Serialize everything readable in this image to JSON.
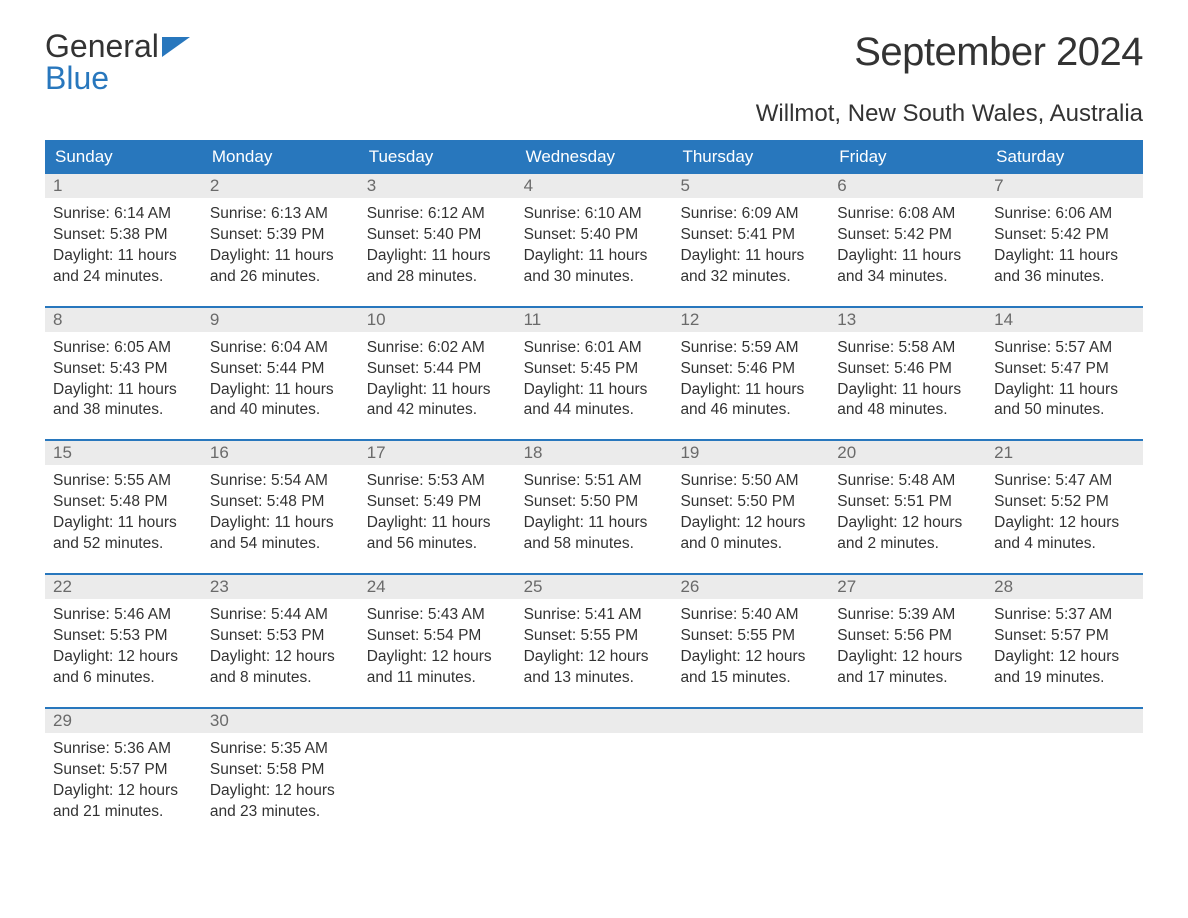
{
  "logo": {
    "text1": "General",
    "text2": "Blue",
    "flag_color": "#2877bd"
  },
  "title": "September 2024",
  "subtitle": "Willmot, New South Wales, Australia",
  "colors": {
    "header_bg": "#2877bd",
    "header_text": "#ffffff",
    "daynum_bg": "#ebebeb",
    "daynum_text": "#6a6a6a",
    "body_text": "#333333",
    "week_border": "#2877bd"
  },
  "day_headers": [
    "Sunday",
    "Monday",
    "Tuesday",
    "Wednesday",
    "Thursday",
    "Friday",
    "Saturday"
  ],
  "weeks": [
    [
      {
        "n": "1",
        "sunrise": "6:14 AM",
        "sunset": "5:38 PM",
        "daylight": "11 hours and 24 minutes."
      },
      {
        "n": "2",
        "sunrise": "6:13 AM",
        "sunset": "5:39 PM",
        "daylight": "11 hours and 26 minutes."
      },
      {
        "n": "3",
        "sunrise": "6:12 AM",
        "sunset": "5:40 PM",
        "daylight": "11 hours and 28 minutes."
      },
      {
        "n": "4",
        "sunrise": "6:10 AM",
        "sunset": "5:40 PM",
        "daylight": "11 hours and 30 minutes."
      },
      {
        "n": "5",
        "sunrise": "6:09 AM",
        "sunset": "5:41 PM",
        "daylight": "11 hours and 32 minutes."
      },
      {
        "n": "6",
        "sunrise": "6:08 AM",
        "sunset": "5:42 PM",
        "daylight": "11 hours and 34 minutes."
      },
      {
        "n": "7",
        "sunrise": "6:06 AM",
        "sunset": "5:42 PM",
        "daylight": "11 hours and 36 minutes."
      }
    ],
    [
      {
        "n": "8",
        "sunrise": "6:05 AM",
        "sunset": "5:43 PM",
        "daylight": "11 hours and 38 minutes."
      },
      {
        "n": "9",
        "sunrise": "6:04 AM",
        "sunset": "5:44 PM",
        "daylight": "11 hours and 40 minutes."
      },
      {
        "n": "10",
        "sunrise": "6:02 AM",
        "sunset": "5:44 PM",
        "daylight": "11 hours and 42 minutes."
      },
      {
        "n": "11",
        "sunrise": "6:01 AM",
        "sunset": "5:45 PM",
        "daylight": "11 hours and 44 minutes."
      },
      {
        "n": "12",
        "sunrise": "5:59 AM",
        "sunset": "5:46 PM",
        "daylight": "11 hours and 46 minutes."
      },
      {
        "n": "13",
        "sunrise": "5:58 AM",
        "sunset": "5:46 PM",
        "daylight": "11 hours and 48 minutes."
      },
      {
        "n": "14",
        "sunrise": "5:57 AM",
        "sunset": "5:47 PM",
        "daylight": "11 hours and 50 minutes."
      }
    ],
    [
      {
        "n": "15",
        "sunrise": "5:55 AM",
        "sunset": "5:48 PM",
        "daylight": "11 hours and 52 minutes."
      },
      {
        "n": "16",
        "sunrise": "5:54 AM",
        "sunset": "5:48 PM",
        "daylight": "11 hours and 54 minutes."
      },
      {
        "n": "17",
        "sunrise": "5:53 AM",
        "sunset": "5:49 PM",
        "daylight": "11 hours and 56 minutes."
      },
      {
        "n": "18",
        "sunrise": "5:51 AM",
        "sunset": "5:50 PM",
        "daylight": "11 hours and 58 minutes."
      },
      {
        "n": "19",
        "sunrise": "5:50 AM",
        "sunset": "5:50 PM",
        "daylight": "12 hours and 0 minutes."
      },
      {
        "n": "20",
        "sunrise": "5:48 AM",
        "sunset": "5:51 PM",
        "daylight": "12 hours and 2 minutes."
      },
      {
        "n": "21",
        "sunrise": "5:47 AM",
        "sunset": "5:52 PM",
        "daylight": "12 hours and 4 minutes."
      }
    ],
    [
      {
        "n": "22",
        "sunrise": "5:46 AM",
        "sunset": "5:53 PM",
        "daylight": "12 hours and 6 minutes."
      },
      {
        "n": "23",
        "sunrise": "5:44 AM",
        "sunset": "5:53 PM",
        "daylight": "12 hours and 8 minutes."
      },
      {
        "n": "24",
        "sunrise": "5:43 AM",
        "sunset": "5:54 PM",
        "daylight": "12 hours and 11 minutes."
      },
      {
        "n": "25",
        "sunrise": "5:41 AM",
        "sunset": "5:55 PM",
        "daylight": "12 hours and 13 minutes."
      },
      {
        "n": "26",
        "sunrise": "5:40 AM",
        "sunset": "5:55 PM",
        "daylight": "12 hours and 15 minutes."
      },
      {
        "n": "27",
        "sunrise": "5:39 AM",
        "sunset": "5:56 PM",
        "daylight": "12 hours and 17 minutes."
      },
      {
        "n": "28",
        "sunrise": "5:37 AM",
        "sunset": "5:57 PM",
        "daylight": "12 hours and 19 minutes."
      }
    ],
    [
      {
        "n": "29",
        "sunrise": "5:36 AM",
        "sunset": "5:57 PM",
        "daylight": "12 hours and 21 minutes."
      },
      {
        "n": "30",
        "sunrise": "5:35 AM",
        "sunset": "5:58 PM",
        "daylight": "12 hours and 23 minutes."
      },
      null,
      null,
      null,
      null,
      null
    ]
  ],
  "labels": {
    "sunrise": "Sunrise: ",
    "sunset": "Sunset: ",
    "daylight": "Daylight: "
  }
}
